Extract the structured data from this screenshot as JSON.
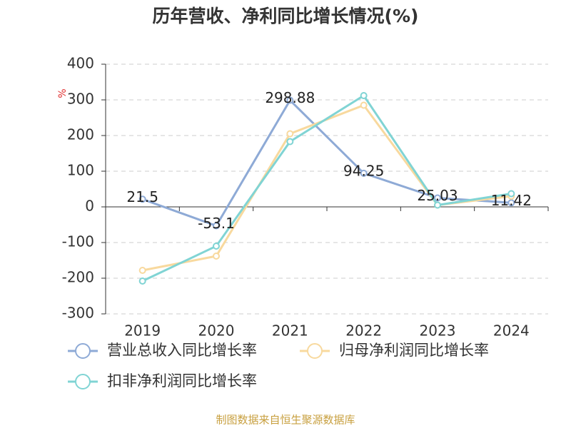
{
  "chart_data": {
    "type": "line",
    "title": "历年营收、净利同比增长情况(%)",
    "y_axis_label": "%",
    "categories": [
      "2019",
      "2020",
      "2021",
      "2022",
      "2023",
      "2024"
    ],
    "series": [
      {
        "name": "营业总收入同比增长率",
        "color": "#8eaad6",
        "values": [
          21.5,
          -53.1,
          298.88,
          94.25,
          25.03,
          11.42
        ],
        "show_labels": true
      },
      {
        "name": "归母净利润同比增长率",
        "color": "#f8d99e",
        "values": [
          -178,
          -138,
          205,
          285,
          5,
          30
        ],
        "show_labels": false
      },
      {
        "name": "扣非净利润同比增长率",
        "color": "#80d4d4",
        "values": [
          -208,
          -110,
          183,
          312,
          5,
          37
        ],
        "show_labels": false
      }
    ],
    "ylim": [
      -300,
      400
    ],
    "yticks": [
      -300,
      -200,
      -100,
      0,
      100,
      200,
      300,
      400
    ],
    "grid": true,
    "source": "制图数据来自恒生聚源数据库"
  }
}
